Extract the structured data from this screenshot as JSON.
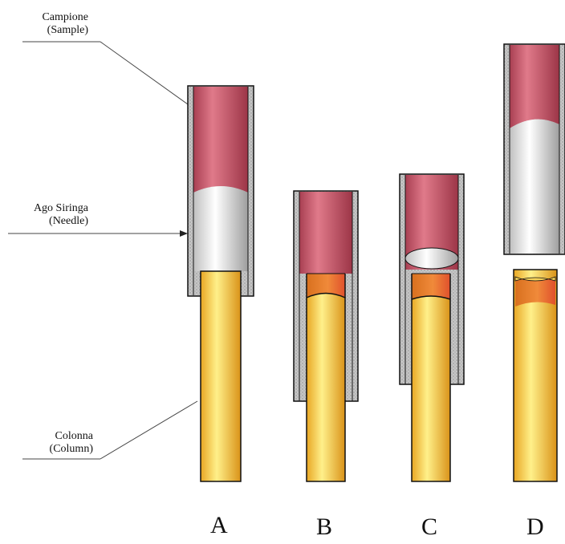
{
  "labels": {
    "sample": {
      "line1": "Campione",
      "line2": "(Sample)"
    },
    "needle": {
      "line1": "Ago Siringa",
      "line2": "(Needle)"
    },
    "column": {
      "line1": "Colonna",
      "line2": "(Column)"
    }
  },
  "stages": [
    "A",
    "B",
    "C",
    "D"
  ],
  "colors": {
    "sample": "#c9556a",
    "needle_wall": "#bdbdbd",
    "gas_gap": "#e8e8e8",
    "column": "#f4c742",
    "mixing_zone": "#e8602c",
    "outline": "#111111"
  }
}
